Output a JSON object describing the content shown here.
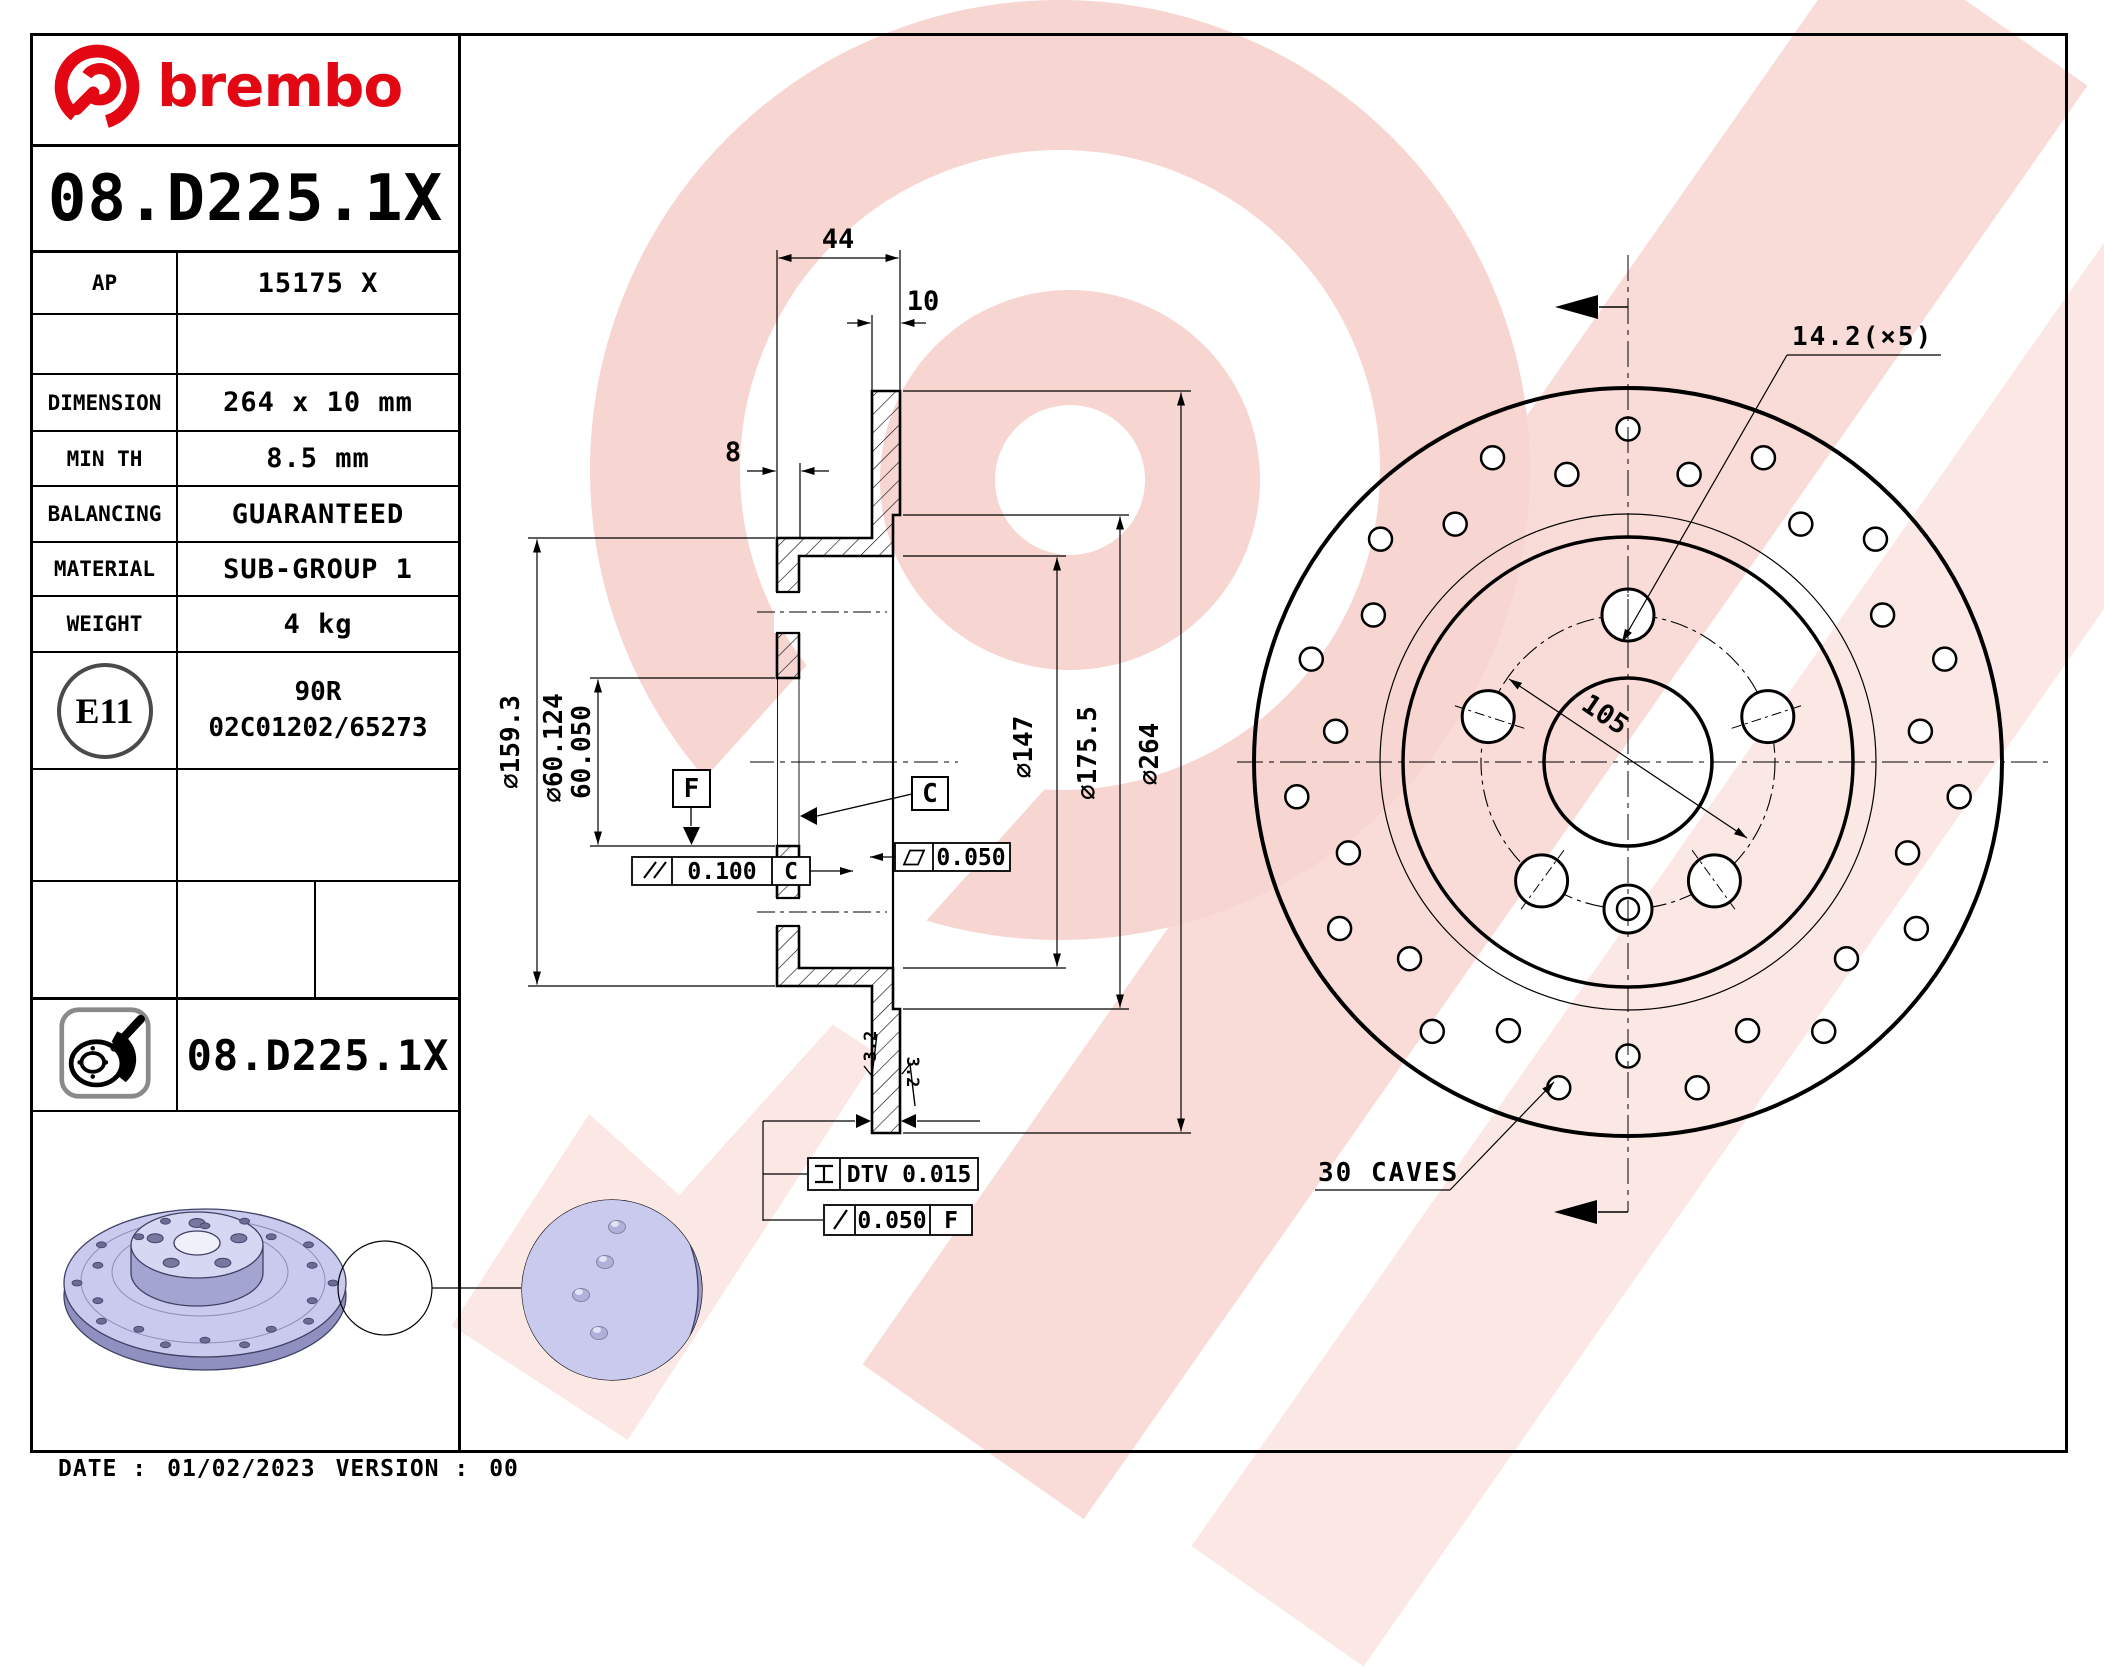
{
  "brand": {
    "wordmark": "brembo"
  },
  "title_block": {
    "part_number": "08.D225.1X",
    "rows": [
      {
        "label": "AP",
        "value": "15175 X"
      },
      {
        "label": "",
        "value": ""
      },
      {
        "label": "DIMENSION",
        "value": "264 x 10 mm"
      },
      {
        "label": "MIN TH",
        "value": "8.5 mm"
      },
      {
        "label": "BALANCING",
        "value": "GUARANTEED"
      },
      {
        "label": "MATERIAL",
        "value": "SUB-GROUP 1"
      },
      {
        "label": "WEIGHT",
        "value": "4 kg"
      }
    ],
    "homologation": {
      "mark": "E11",
      "line1": "90R",
      "line2": "02C01202/65273"
    },
    "footer_part_number": "08.D225.1X"
  },
  "section_view": {
    "dim_overall_width": "44",
    "dim_disc_thickness": "10",
    "dim_hat_thickness": "8",
    "dia_hat": "⌀159.3",
    "dia_bore_upper": "⌀60.124",
    "dia_bore_lower": "60.050",
    "dia_hat_inner": "⌀147",
    "dia_band_inner": "⌀175.5",
    "dia_outer": "⌀264",
    "datum_f": "F",
    "datum_c": "C",
    "parallelism_value": "0.100",
    "parallelism_datum": "C",
    "flatness_value": "0.050",
    "dtv_value": "DTV 0.015",
    "runout_value": "0.050",
    "runout_datum": "F",
    "roughness_left": "3.2",
    "roughness_right": "3.2"
  },
  "front_view": {
    "holes_label": "14.2(×5)",
    "bolt_circle_diameter": "105",
    "caves_label": "30 CAVES",
    "cave_count": 30,
    "bolt_count": 5
  },
  "footer": {
    "date_label": "DATE :",
    "date": "01/02/2023",
    "version_label": "VERSION :",
    "version": "00"
  },
  "colors": {
    "brand_red": "#e30613",
    "watermark_pink": "#f7d5d1",
    "render_lavender": "#c9caed"
  }
}
